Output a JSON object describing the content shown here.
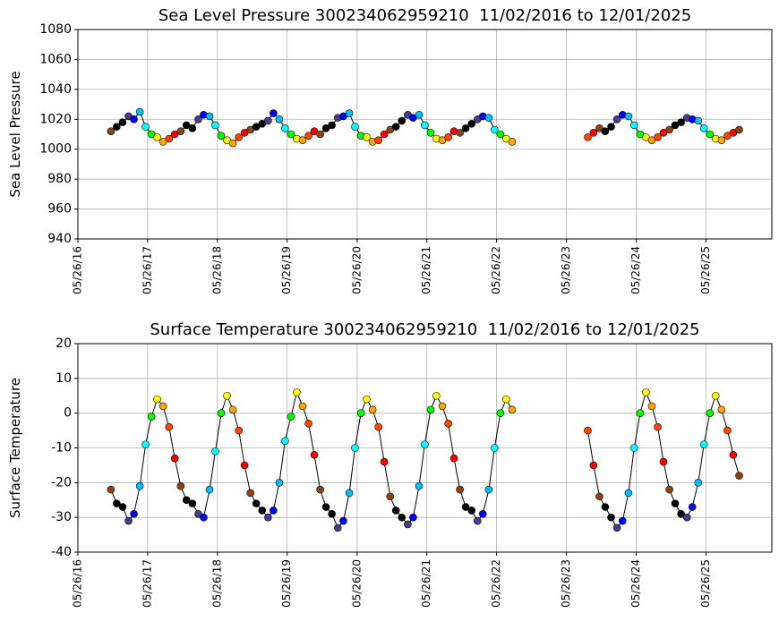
{
  "chart_data": [
    {
      "type": "scatter",
      "title": "Sea Level Pressure 300234062959210  11/02/2016 to 12/01/2025",
      "ylabel": "Sea Level Pressure",
      "x": [
        "11/15/16",
        "12/15/16",
        "01/15/17",
        "02/15/17",
        "03/15/17",
        "04/15/17",
        "05/15/17",
        "06/15/17",
        "07/15/17",
        "08/15/17",
        "09/15/17",
        "10/15/17",
        "11/15/17",
        "12/15/17",
        "01/15/18",
        "02/15/18",
        "03/15/18",
        "04/15/18",
        "05/15/18",
        "06/15/18",
        "07/15/18",
        "08/15/18",
        "09/15/18",
        "10/15/18",
        "11/15/18",
        "12/15/18",
        "01/15/19",
        "02/15/19",
        "03/15/19",
        "04/15/19",
        "05/15/19",
        "06/15/19",
        "07/15/19",
        "08/15/19",
        "09/15/19",
        "10/15/19",
        "11/15/19",
        "12/15/19",
        "01/15/20",
        "02/15/20",
        "03/15/20",
        "04/15/20",
        "05/15/20",
        "06/15/20",
        "07/15/20",
        "08/15/20",
        "09/15/20",
        "10/15/20",
        "11/15/20",
        "12/15/20",
        "01/15/21",
        "02/15/21",
        "03/15/21",
        "04/15/21",
        "05/15/21",
        "06/15/21",
        "07/15/21",
        "08/15/21",
        "09/15/21",
        "10/15/21",
        "11/15/21",
        "12/15/21",
        "01/15/22",
        "02/15/22",
        "03/15/22",
        "04/15/22",
        "05/15/22",
        "06/15/22",
        "07/15/22",
        "08/15/22",
        "09/15/23",
        "10/15/23",
        "11/15/23",
        "12/15/23",
        "01/15/24",
        "02/15/24",
        "03/15/24",
        "04/15/24",
        "05/15/24",
        "06/15/24",
        "07/15/24",
        "08/15/24",
        "09/15/24",
        "10/15/24",
        "11/15/24",
        "12/15/24",
        "01/15/25",
        "02/15/25",
        "03/15/25",
        "04/15/25",
        "05/15/25",
        "06/15/25",
        "07/15/25",
        "08/15/25",
        "09/15/25",
        "10/15/25",
        "11/15/25"
      ],
      "values": [
        1012,
        1015,
        1018,
        1022,
        1020,
        1025,
        1015,
        1010,
        1008,
        1005,
        1007,
        1010,
        1012,
        1016,
        1014,
        1020,
        1023,
        1022,
        1016,
        1009,
        1006,
        1004,
        1008,
        1011,
        1013,
        1015,
        1017,
        1019,
        1024,
        1020,
        1014,
        1010,
        1007,
        1006,
        1009,
        1012,
        1010,
        1014,
        1016,
        1021,
        1022,
        1024,
        1015,
        1009,
        1008,
        1005,
        1006,
        1010,
        1013,
        1015,
        1019,
        1023,
        1021,
        1023,
        1016,
        1011,
        1007,
        1006,
        1008,
        1012,
        1011,
        1014,
        1017,
        1020,
        1022,
        1021,
        1013,
        1010,
        1007,
        1005,
        1008,
        1011,
        1014,
        1012,
        1015,
        1020,
        1023,
        1022,
        1016,
        1010,
        1008,
        1006,
        1008,
        1011,
        1013,
        1016,
        1018,
        1021,
        1020,
        1019,
        1014,
        1010,
        1007,
        1006,
        1009,
        1011,
        1013
      ],
      "month_colors": [
        "#000000",
        "#483d8b",
        "#0000ff",
        "#00bfff",
        "#00ffff",
        "#00ff00",
        "#ffff00",
        "#ffa500",
        "#ff4500",
        "#ff0000",
        "#8b4513",
        "#000000"
      ],
      "xlim": [
        "05/26/16",
        "05/05/26"
      ],
      "xticks": [
        "05/26/16",
        "05/26/17",
        "05/26/18",
        "05/26/19",
        "05/26/20",
        "05/26/21",
        "05/26/22",
        "05/26/23",
        "05/26/24",
        "05/26/25"
      ],
      "ylim": [
        940,
        1080
      ],
      "yticks": [
        940,
        960,
        980,
        1000,
        1020,
        1040,
        1060,
        1080
      ],
      "grid": true
    },
    {
      "type": "scatter",
      "title": "Surface Temperature 300234062959210  11/02/2016 to 12/01/2025",
      "ylabel": "Surface Temperature",
      "x": [
        "11/15/16",
        "12/15/16",
        "01/15/17",
        "02/15/17",
        "03/15/17",
        "04/15/17",
        "05/15/17",
        "06/15/17",
        "07/15/17",
        "08/15/17",
        "09/15/17",
        "10/15/17",
        "11/15/17",
        "12/15/17",
        "01/15/18",
        "02/15/18",
        "03/15/18",
        "04/15/18",
        "05/15/18",
        "06/15/18",
        "07/15/18",
        "08/15/18",
        "09/15/18",
        "10/15/18",
        "11/15/18",
        "12/15/18",
        "01/15/19",
        "02/15/19",
        "03/15/19",
        "04/15/19",
        "05/15/19",
        "06/15/19",
        "07/15/19",
        "08/15/19",
        "09/15/19",
        "10/15/19",
        "11/15/19",
        "12/15/19",
        "01/15/20",
        "02/15/20",
        "03/15/20",
        "04/15/20",
        "05/15/20",
        "06/15/20",
        "07/15/20",
        "08/15/20",
        "09/15/20",
        "10/15/20",
        "11/15/20",
        "12/15/20",
        "01/15/21",
        "02/15/21",
        "03/15/21",
        "04/15/21",
        "05/15/21",
        "06/15/21",
        "07/15/21",
        "08/15/21",
        "09/15/21",
        "10/15/21",
        "11/15/21",
        "12/15/21",
        "01/15/22",
        "02/15/22",
        "03/15/22",
        "04/15/22",
        "05/15/22",
        "06/15/22",
        "07/15/22",
        "08/15/22",
        "09/15/23",
        "10/15/23",
        "11/15/23",
        "12/15/23",
        "01/15/24",
        "02/15/24",
        "03/15/24",
        "04/15/24",
        "05/15/24",
        "06/15/24",
        "07/15/24",
        "08/15/24",
        "09/15/24",
        "10/15/24",
        "11/15/24",
        "12/15/24",
        "01/15/25",
        "02/15/25",
        "03/15/25",
        "04/15/25",
        "05/15/25",
        "06/15/25",
        "07/15/25",
        "08/15/25",
        "09/15/25",
        "10/15/25",
        "11/15/25"
      ],
      "values": [
        -22,
        -26,
        -27,
        -31,
        -29,
        -21,
        -9,
        -1,
        4,
        2,
        -4,
        -13,
        -21,
        -25,
        -26,
        -29,
        -30,
        -22,
        -11,
        0,
        5,
        1,
        -5,
        -15,
        -23,
        -26,
        -28,
        -30,
        -28,
        -20,
        -8,
        -1,
        6,
        2,
        -3,
        -12,
        -22,
        -27,
        -29,
        -33,
        -31,
        -23,
        -10,
        0,
        4,
        1,
        -4,
        -14,
        -24,
        -28,
        -30,
        -32,
        -30,
        -21,
        -9,
        1,
        5,
        2,
        -3,
        -13,
        -22,
        -27,
        -28,
        -31,
        -29,
        -22,
        -10,
        0,
        4,
        1,
        -5,
        -15,
        -24,
        -27,
        -30,
        -33,
        -31,
        -23,
        -10,
        0,
        6,
        2,
        -4,
        -14,
        -22,
        -26,
        -29,
        -30,
        -27,
        -20,
        -9,
        0,
        5,
        1,
        -5,
        -12,
        -18
      ],
      "month_colors": [
        "#000000",
        "#483d8b",
        "#0000ff",
        "#00bfff",
        "#00ffff",
        "#00ff00",
        "#ffff00",
        "#ffa500",
        "#ff4500",
        "#ff0000",
        "#8b4513",
        "#000000"
      ],
      "xlim": [
        "05/26/16",
        "05/05/26"
      ],
      "xticks": [
        "05/26/16",
        "05/26/17",
        "05/26/18",
        "05/26/19",
        "05/26/20",
        "05/26/21",
        "05/26/22",
        "05/26/23",
        "05/26/24",
        "05/26/25"
      ],
      "ylim": [
        -40,
        20
      ],
      "yticks": [
        -40,
        -30,
        -20,
        -10,
        0,
        10,
        20
      ],
      "grid": true
    }
  ]
}
